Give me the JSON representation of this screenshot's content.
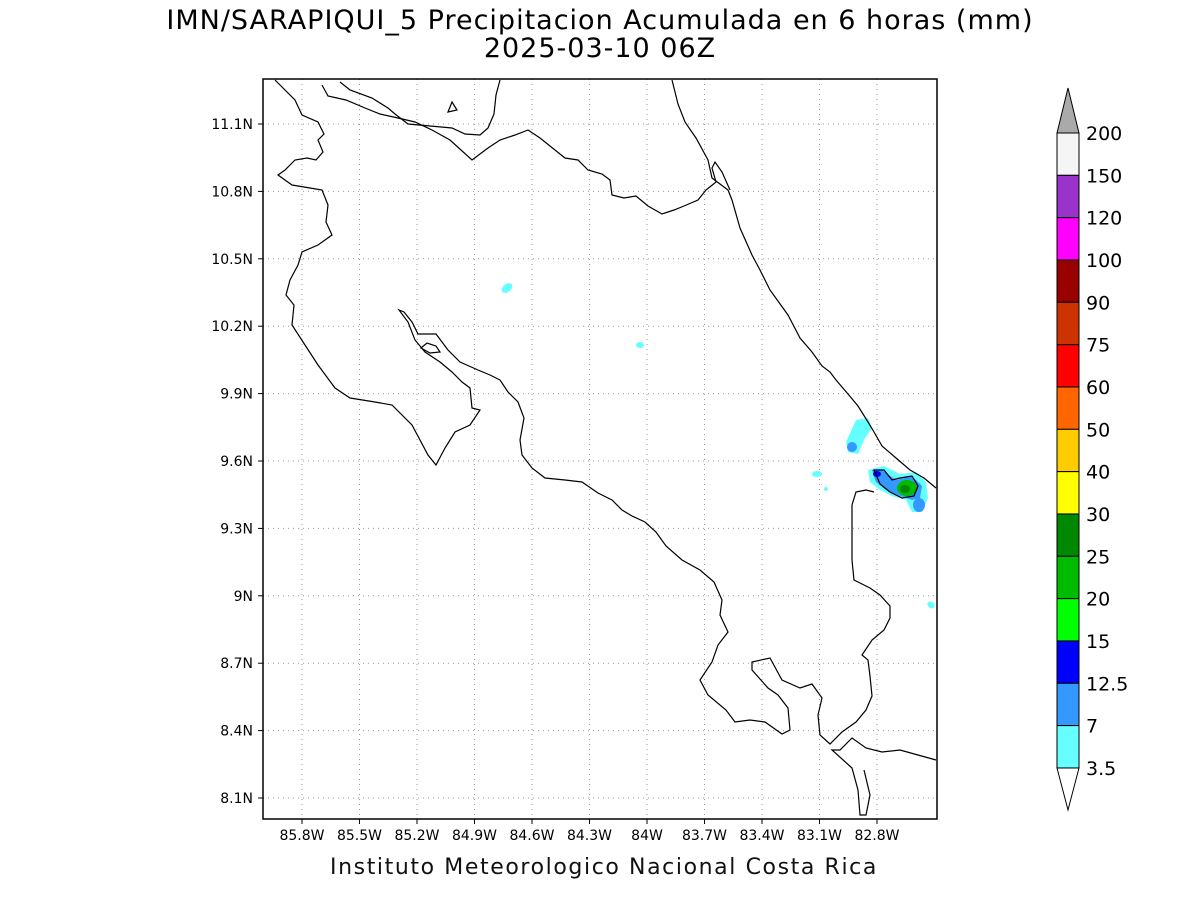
{
  "title_line1": "IMN/SARAPIQUI_5 Precipitacion Acumulada en 6 horas (mm)",
  "title_line2": "2025-03-10 06Z",
  "footer": "Instituto Meteorologico Nacional Costa Rica",
  "map": {
    "lat_ticks": [
      "11.1N",
      "10.8N",
      "10.5N",
      "10.2N",
      "9.9N",
      "9.6N",
      "9.3N",
      "9N",
      "8.7N",
      "8.4N",
      "8.1N"
    ],
    "lon_ticks": [
      "85.8W",
      "85.5W",
      "85.2W",
      "84.9W",
      "84.6W",
      "84.3W",
      "84W",
      "83.7W",
      "83.4W",
      "83.1W",
      "82.8W"
    ]
  },
  "legend": {
    "labels": [
      "200",
      "150",
      "120",
      "100",
      "90",
      "75",
      "60",
      "50",
      "40",
      "30",
      "25",
      "20",
      "15",
      "12.5",
      "7",
      "3.5"
    ],
    "colors": [
      "#f5f5f5",
      "#9933cc",
      "#ff00ff",
      "#990000",
      "#cc3300",
      "#ff0000",
      "#ff6600",
      "#ffcc00",
      "#ffff00",
      "#008800",
      "#00bb00",
      "#00ff00",
      "#0000ff",
      "#3399ff",
      "#66ffff"
    ],
    "over_color": "#aaaaaa",
    "under_color": "#ffffff"
  }
}
